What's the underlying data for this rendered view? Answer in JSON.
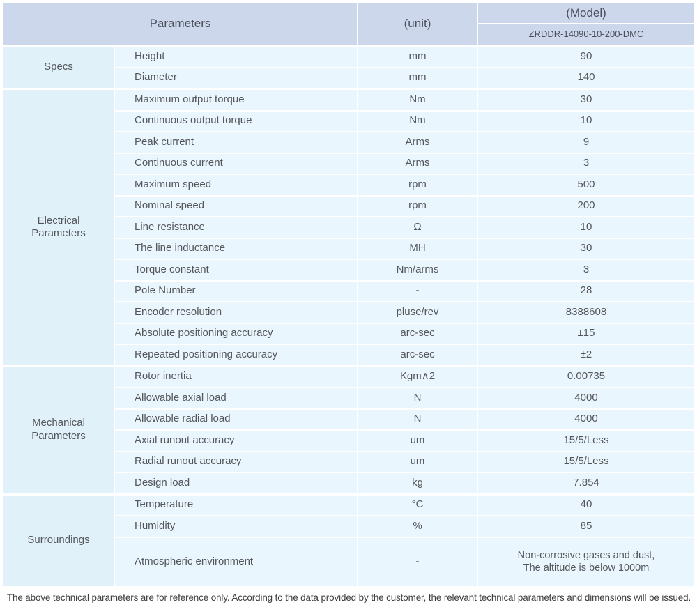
{
  "header": {
    "parameters_label": "Parameters",
    "unit_label": "(unit)",
    "model_label": "(Model)",
    "model_number": "ZRDDR-14090-10-200-DMC"
  },
  "sections": [
    {
      "category": "Specs",
      "rows": [
        {
          "name": "Height",
          "unit": "mm",
          "value": "90"
        },
        {
          "name": "Diameter",
          "unit": "mm",
          "value": "140"
        }
      ]
    },
    {
      "category": "Electrical Parameters",
      "rows": [
        {
          "name": "Maximum output torque",
          "unit": "Nm",
          "value": "30"
        },
        {
          "name": "Continuous output torque",
          "unit": "Nm",
          "value": "10"
        },
        {
          "name": "Peak current",
          "unit": "Arms",
          "value": "9"
        },
        {
          "name": "Continuous current",
          "unit": "Arms",
          "value": "3"
        },
        {
          "name": "Maximum speed",
          "unit": "rpm",
          "value": "500"
        },
        {
          "name": "Nominal speed",
          "unit": "rpm",
          "value": "200"
        },
        {
          "name": "Line resistance",
          "unit": "Ω",
          "value": "10"
        },
        {
          "name": "The line inductance",
          "unit": "MH",
          "value": "30"
        },
        {
          "name": "Torque constant",
          "unit": "Nm/arms",
          "value": "3"
        },
        {
          "name": "Pole Number",
          "unit": "-",
          "value": "28"
        },
        {
          "name": "Encoder resolution",
          "unit": "pluse/rev",
          "value": "8388608"
        },
        {
          "name": "Absolute positioning accuracy",
          "unit": "arc-sec",
          "value": "±15"
        },
        {
          "name": "Repeated positioning accuracy",
          "unit": "arc-sec",
          "value": "±2"
        }
      ]
    },
    {
      "category": "Mechanical Parameters",
      "rows": [
        {
          "name": "Rotor inertia",
          "unit": "Kgm∧2",
          "value": "0.00735"
        },
        {
          "name": "Allowable axial load",
          "unit": "N",
          "value": "4000"
        },
        {
          "name": "Allowable radial load",
          "unit": "N",
          "value": "4000"
        },
        {
          "name": "Axial runout accuracy",
          "unit": "um",
          "value": "15/5/Less"
        },
        {
          "name": "Radial runout accuracy",
          "unit": "um",
          "value": "15/5/Less"
        },
        {
          "name": "Design load",
          "unit": "kg",
          "value": "7.854"
        }
      ]
    },
    {
      "category": "Surroundings",
      "rows": [
        {
          "name": "Temperature",
          "unit": "°C",
          "value": "40"
        },
        {
          "name": "Humidity",
          "unit": "%",
          "value": "85"
        },
        {
          "name": "Atmospheric environment",
          "unit": "-",
          "value_lines": [
            "Non-corrosive gases and dust,",
            "The altitude is below 1000m"
          ]
        }
      ]
    }
  ],
  "footer": {
    "note": "The above technical parameters are for reference only. According to the data provided by the customer, the relevant technical parameters and dimensions will be issued."
  },
  "colors": {
    "header_bg": "#cdd7eb",
    "category_bg": "#e0f1fa",
    "cell_bg": "#e9f6fd",
    "text": "#54565a"
  }
}
